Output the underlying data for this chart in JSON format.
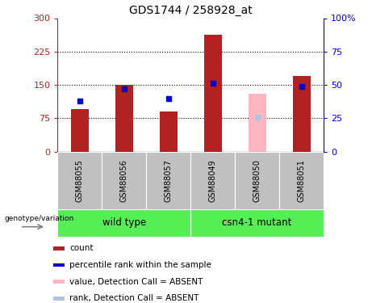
{
  "title": "GDS1744 / 258928_at",
  "samples": [
    "GSM88055",
    "GSM88056",
    "GSM88057",
    "GSM88049",
    "GSM88050",
    "GSM88051"
  ],
  "count_values": [
    95,
    150,
    90,
    262,
    null,
    170
  ],
  "count_absent_values": [
    null,
    null,
    null,
    null,
    130,
    null
  ],
  "rank_values": [
    38,
    47,
    40,
    51,
    null,
    49
  ],
  "rank_absent_values": [
    null,
    null,
    null,
    null,
    26,
    null
  ],
  "is_absent": [
    false,
    false,
    false,
    false,
    true,
    false
  ],
  "groups": [
    {
      "label": "wild type",
      "start": 0,
      "end": 3
    },
    {
      "label": "csn4-1 mutant",
      "start": 3,
      "end": 6
    }
  ],
  "ylim_left": [
    0,
    300
  ],
  "ylim_right": [
    0,
    100
  ],
  "yticks_left": [
    0,
    75,
    150,
    225,
    300
  ],
  "yticks_right": [
    0,
    25,
    50,
    75,
    100
  ],
  "ytick_labels_left": [
    "0",
    "75",
    "150",
    "225",
    "300"
  ],
  "ytick_labels_right": [
    "0",
    "25",
    "50",
    "75",
    "100%"
  ],
  "bar_color": "#B22222",
  "bar_absent_color": "#FFB6C1",
  "rank_color": "#0000CD",
  "rank_absent_color": "#B0C4DE",
  "bar_width": 0.4,
  "group_box_color": "#C0C0C0",
  "green_color": "#55EE55",
  "legend_items": [
    {
      "label": "count",
      "color": "#B22222"
    },
    {
      "label": "percentile rank within the sample",
      "color": "#0000CD"
    },
    {
      "label": "value, Detection Call = ABSENT",
      "color": "#FFB6C1"
    },
    {
      "label": "rank, Detection Call = ABSENT",
      "color": "#B0C4DE"
    }
  ]
}
